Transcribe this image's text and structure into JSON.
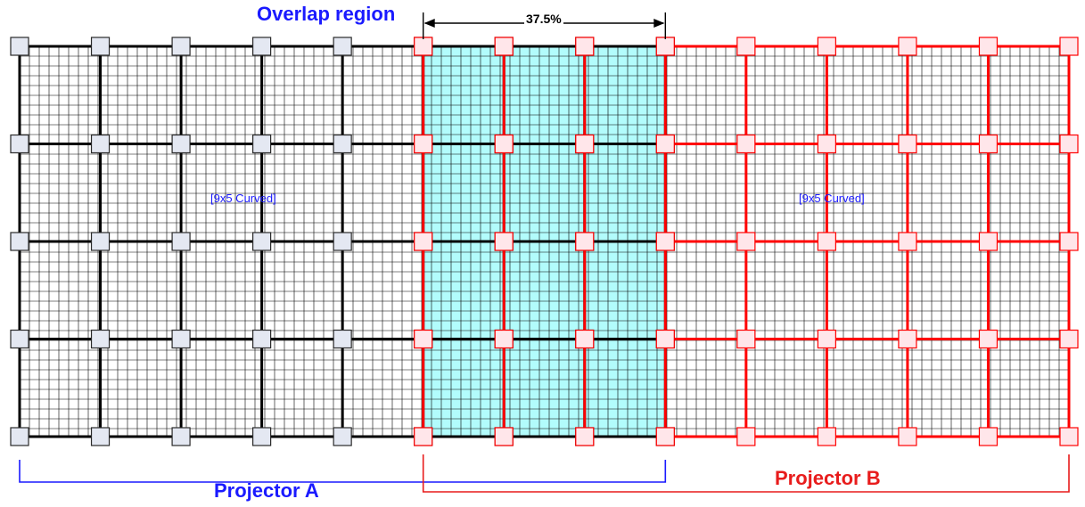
{
  "labels": {
    "overlap_region": "Overlap region",
    "overlap_percent": "37.5%",
    "projector_a": "Projector A",
    "projector_b": "Projector B",
    "grid_a_type": "[9x5 Curved]",
    "grid_b_type": "[9x5 Curved]"
  },
  "grids": {
    "projector_a": {
      "columns": 9,
      "rows": 5,
      "color": "#000000",
      "node_fill": "#e4e8f2",
      "node_stroke": "#2a2a2a"
    },
    "projector_b": {
      "columns": 9,
      "rows": 5,
      "color": "#ff0000",
      "node_fill": "#ffe6ea",
      "node_stroke": "#ff0000"
    }
  },
  "overlap": {
    "fraction": 0.375,
    "fill": "#b2fcfc"
  },
  "colors": {
    "blue": "#1a1aff",
    "red": "#e81c1c",
    "fine_grid": "#000000"
  }
}
